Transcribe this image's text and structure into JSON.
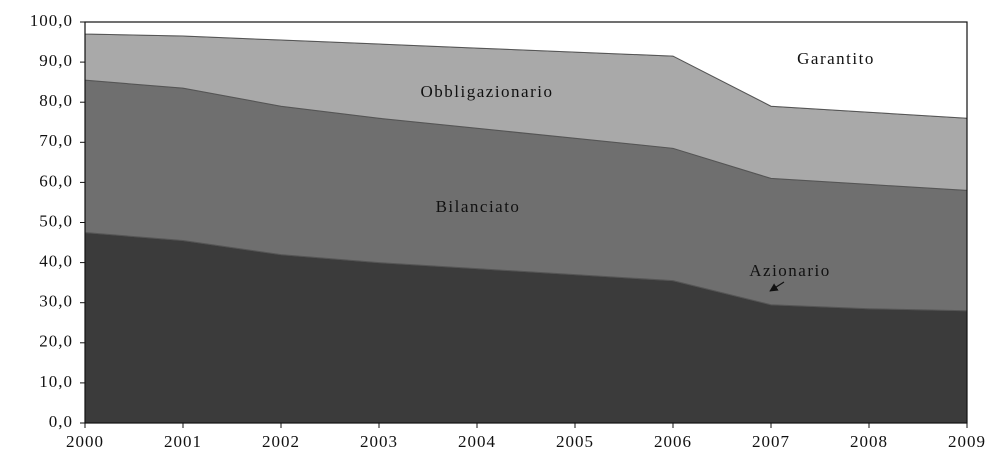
{
  "chart_data": {
    "type": "stacked_area",
    "x": [
      2000,
      2001,
      2002,
      2003,
      2004,
      2005,
      2006,
      2007,
      2008,
      2009
    ],
    "xlim": [
      2000,
      2009
    ],
    "xticks": [
      2000,
      2001,
      2002,
      2003,
      2004,
      2005,
      2006,
      2007,
      2008,
      2009
    ],
    "ylim": [
      0,
      100
    ],
    "yticks": [
      {
        "value": 0,
        "label": "0,0"
      },
      {
        "value": 10,
        "label": "10,0"
      },
      {
        "value": 20,
        "label": "20,0"
      },
      {
        "value": 30,
        "label": "30,0"
      },
      {
        "value": 40,
        "label": "40,0"
      },
      {
        "value": 50,
        "label": "50,0"
      },
      {
        "value": 60,
        "label": "60,0"
      },
      {
        "value": 70,
        "label": "70,0"
      },
      {
        "value": 80,
        "label": "80,0"
      },
      {
        "value": 90,
        "label": "90,0"
      },
      {
        "value": 100,
        "label": "100,0"
      }
    ],
    "series": [
      {
        "name": "Azionario",
        "color": "#3b3b3b",
        "values": [
          47.5,
          45.5,
          42,
          40,
          38.5,
          37,
          35.5,
          29.5,
          28.5,
          28
        ]
      },
      {
        "name": "Bilanciato",
        "color": "#6f6f6f",
        "values": [
          38,
          38,
          37,
          36,
          35,
          34,
          33,
          31.5,
          31,
          30
        ]
      },
      {
        "name": "Obbligazionario",
        "color": "#a9a9a9",
        "values": [
          11.5,
          13,
          16.5,
          18.5,
          20,
          21.5,
          23,
          18,
          18,
          18
        ]
      },
      {
        "name": "Garantito",
        "color": "#ffffff",
        "values": [
          3,
          3.5,
          4.5,
          5.5,
          6.5,
          7.5,
          8.5,
          21,
          22.5,
          24
        ]
      }
    ]
  }
}
